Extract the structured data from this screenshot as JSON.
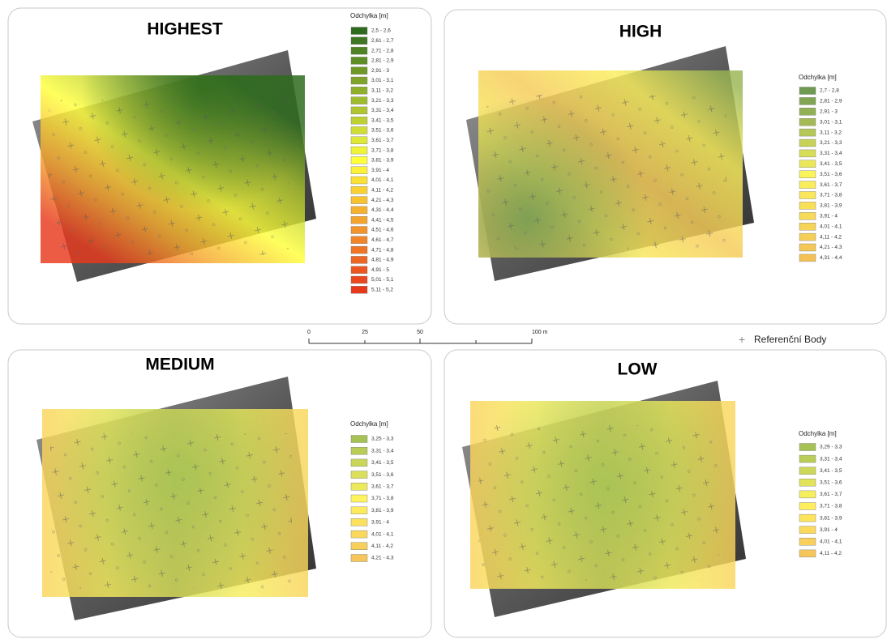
{
  "panels": [
    {
      "title": "HIGHEST",
      "legend": {
        "title": "Odchylka [m]",
        "color_stops": [
          "#2f6b1f",
          "#ffff3a",
          "#e8381c"
        ],
        "items": [
          "2,5 - 2,6",
          "2,61 - 2,7",
          "2,71 - 2,8",
          "2,81 - 2,9",
          "2,91 - 3",
          "3,01 - 3,1",
          "3,11 - 3,2",
          "3,21 - 3,3",
          "3,31 - 3,4",
          "3,41 - 3,5",
          "3,51 - 3,6",
          "3,61 - 3,7",
          "3,71 - 3,8",
          "3,81 - 3,9",
          "3,91 - 4",
          "4,01 - 4,1",
          "4,11 - 4,2",
          "4,21 - 4,3",
          "4,31 - 4,4",
          "4,41 - 4,5",
          "4,51 - 4,6",
          "4,61 - 4,7",
          "4,71 - 4,8",
          "4,81 - 4,9",
          "4,91 - 5",
          "5,01 - 5,1",
          "5,11 - 5,2"
        ]
      }
    },
    {
      "title": "HIGH",
      "legend": {
        "title": "Odchylka [m]",
        "color_stops": [
          "#6f9a52",
          "#fbf35a",
          "#f3c156"
        ],
        "items": [
          "2,7 - 2,8",
          "2,81 - 2,9",
          "2,91 - 3",
          "3,01 - 3,1",
          "3,11 - 3,2",
          "3,21 - 3,3",
          "3,31 - 3,4",
          "3,41 - 3,5",
          "3,51 - 3,6",
          "3,61 - 3,7",
          "3,71 - 3,8",
          "3,81 - 3,9",
          "3,91 - 4",
          "4,01 - 4,1",
          "4,11 - 4,2",
          "4,21 - 4,3",
          "4,31 - 4,4"
        ]
      }
    },
    {
      "title": "MEDIUM",
      "legend": {
        "title": "Odchylka [m]",
        "color_stops": [
          "#a6c254",
          "#fff35e",
          "#f6c65a"
        ],
        "items": [
          "3,25 - 3,3",
          "3,31 - 3,4",
          "3,41 - 3,5",
          "3,51 - 3,6",
          "3,61 - 3,7",
          "3,71 - 3,8",
          "3,81 - 3,9",
          "3,91 - 4",
          "4,01 - 4,1",
          "4,11 - 4,2",
          "4,21 - 4,3"
        ]
      }
    },
    {
      "title": "LOW",
      "legend": {
        "title": "Odchylka [m]",
        "color_stops": [
          "#a6c254",
          "#fff35e",
          "#f6c65a"
        ],
        "items": [
          "3,29 - 3,3",
          "3,31 - 3,4",
          "3,41 - 3,5",
          "3,51 - 3,6",
          "3,61 - 3,7",
          "3,71 - 3,8",
          "3,81 - 3,9",
          "3,91 - 4",
          "4,01 - 4,1",
          "4,11 - 4,2"
        ]
      }
    }
  ],
  "scale_bar": {
    "labels": [
      "0",
      "25",
      "50",
      "100 m"
    ]
  },
  "point_legend": {
    "label": "Referenční Body"
  }
}
